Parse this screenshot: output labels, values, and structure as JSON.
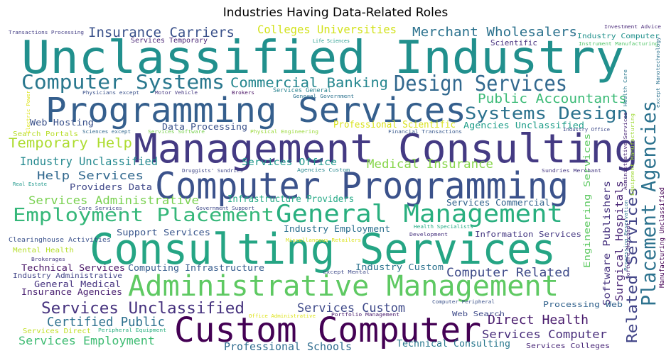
{
  "chart_data": {
    "type": "wordcloud",
    "title": "Industries Having Data-Related Roles",
    "words": [
      {
        "text": "Unclassified Industry",
        "color": "#21908d"
      },
      {
        "text": "Management Consulting",
        "color": "#443a83"
      },
      {
        "text": "Consulting Services",
        "color": "#25a584"
      },
      {
        "text": "Computer Programming",
        "color": "#3b528b"
      },
      {
        "text": "Programming Services",
        "color": "#355f8d"
      },
      {
        "text": "Custom Computer",
        "color": "#440154"
      },
      {
        "text": "Administrative Management",
        "color": "#5ec962"
      },
      {
        "text": "General Management",
        "color": "#29af7f"
      },
      {
        "text": "Placement Agencies",
        "color": "#2c728e"
      },
      {
        "text": "Employment Placement",
        "color": "#35b779"
      },
      {
        "text": "Design Services",
        "color": "#31688e"
      },
      {
        "text": "Computer Systems",
        "color": "#2a788e"
      },
      {
        "text": "Systems Design",
        "color": "#2c728e"
      },
      {
        "text": "Related Services",
        "color": "#414487"
      },
      {
        "text": "Services Unclassified",
        "color": "#46327e"
      },
      {
        "text": "Commercial Banking",
        "color": "#24868e"
      },
      {
        "text": "Insurance Carriers",
        "color": "#3b528b"
      },
      {
        "text": "Merchant Wholesalers",
        "color": "#2c728e"
      },
      {
        "text": "Public Accountants",
        "color": "#3aba76"
      },
      {
        "text": "Colleges Universities",
        "color": "#d2e21b"
      },
      {
        "text": "Temporary Help",
        "color": "#addc30"
      },
      {
        "text": "Medical Insurance",
        "color": "#86d549"
      },
      {
        "text": "Industry Unclassified",
        "color": "#23888e"
      },
      {
        "text": "Help Services",
        "color": "#31688e"
      },
      {
        "text": "Services Administrative",
        "color": "#7ad151"
      },
      {
        "text": "Services Custom",
        "color": "#3e4989"
      },
      {
        "text": "Certified Public",
        "color": "#2d708e"
      },
      {
        "text": "Direct Health",
        "color": "#481a6c"
      },
      {
        "text": "Computer Related",
        "color": "#3e4a89"
      },
      {
        "text": "Services Computer",
        "color": "#472c7a"
      },
      {
        "text": "Services Employment",
        "color": "#3fbc73"
      },
      {
        "text": "Professional Schools",
        "color": "#2f6c8e"
      },
      {
        "text": "Technical Consulting",
        "color": "#2a788e"
      },
      {
        "text": "Surgical Hospitals",
        "color": "#482475"
      },
      {
        "text": "Software Publishers",
        "color": "#46327e"
      },
      {
        "text": "Engineering Services",
        "color": "#5ec962"
      },
      {
        "text": "Professional Scientific",
        "color": "#d8e219"
      },
      {
        "text": "Data Processing",
        "color": "#3b528b"
      },
      {
        "text": "Services Office",
        "color": "#1f988b"
      },
      {
        "text": "Infrastructure Providers",
        "color": "#22a884"
      },
      {
        "text": "Agencies Unclassified",
        "color": "#1f9e89"
      },
      {
        "text": "Services Commercial",
        "color": "#33638d"
      },
      {
        "text": "Providers Data",
        "color": "#3f4788"
      },
      {
        "text": "Support Services",
        "color": "#39568c"
      },
      {
        "text": "Industry Employment",
        "color": "#2d708e"
      },
      {
        "text": "Information Services",
        "color": "#453882"
      },
      {
        "text": "Computing Infrastructure",
        "color": "#365c8d"
      },
      {
        "text": "Industry Custom",
        "color": "#2c728e"
      },
      {
        "text": "Technical Services",
        "color": "#471365"
      },
      {
        "text": "Industry Administrative",
        "color": "#414487"
      },
      {
        "text": "General Medical",
        "color": "#46337f"
      },
      {
        "text": "Insurance Agencies",
        "color": "#481f70"
      },
      {
        "text": "Processing Web",
        "color": "#33638d"
      },
      {
        "text": "Web Search",
        "color": "#3e4a89"
      },
      {
        "text": "Web Hosting",
        "color": "#3b528b"
      },
      {
        "text": "Services Direct",
        "color": "#c0df25"
      },
      {
        "text": "Mental Health",
        "color": "#b5de2b"
      },
      {
        "text": "Search Portals",
        "color": "#b8de29"
      },
      {
        "text": "Scientific",
        "color": "#46307e"
      },
      {
        "text": "Industry Computer",
        "color": "#21918c"
      },
      {
        "text": "Instrument Manufacturing",
        "color": "#52c569"
      },
      {
        "text": "Investment Advice",
        "color": "#482878"
      },
      {
        "text": "Transactions Processing",
        "color": "#433e85"
      },
      {
        "text": "Services Temporary",
        "color": "#482475"
      },
      {
        "text": "Life Sciences",
        "color": "#1f988b"
      },
      {
        "text": "Physicians except",
        "color": "#3b528b"
      },
      {
        "text": "Motor Vehicle",
        "color": "#453882"
      },
      {
        "text": "Brokers",
        "color": "#471063"
      },
      {
        "text": "Services General",
        "color": "#26828e"
      },
      {
        "text": "General Government",
        "color": "#2c728e"
      },
      {
        "text": "Electric Power",
        "color": "#dde318"
      },
      {
        "text": "Sciences except",
        "color": "#31688e"
      },
      {
        "text": "Services Software",
        "color": "#7ad151"
      },
      {
        "text": "Physical Engineering",
        "color": "#9bd93c"
      },
      {
        "text": "Financial Transactions",
        "color": "#38598c"
      },
      {
        "text": "Industry Office",
        "color": "#3e4a89"
      },
      {
        "text": "Health Care",
        "color": "#2a788e"
      },
      {
        "text": "except Nanotechnology",
        "color": "#2c728e"
      },
      {
        "text": "Administrative Services",
        "color": "#482475"
      },
      {
        "text": "Equipment Manufacturing",
        "color": "#a0da39"
      },
      {
        "text": "Druggists' Sundries",
        "color": "#3f4788"
      },
      {
        "text": "Agencies Custom",
        "color": "#24868e"
      },
      {
        "text": "Sundries Merchant",
        "color": "#453781"
      },
      {
        "text": "Real Estate",
        "color": "#1f988b"
      },
      {
        "text": "Care Services",
        "color": "#404688"
      },
      {
        "text": "Government Support",
        "color": "#3e4989"
      },
      {
        "text": "Clearinghouse Activities",
        "color": "#3b528b"
      },
      {
        "text": "Health Specialists",
        "color": "#24aa83"
      },
      {
        "text": "Miscellaneous Retailers",
        "color": "#dae319"
      },
      {
        "text": "Development",
        "color": "#46327e"
      },
      {
        "text": "Brokerages",
        "color": "#453882"
      },
      {
        "text": "Processing Reservation",
        "color": "#2c728e"
      },
      {
        "text": "Software Merchant",
        "color": "#482878"
      },
      {
        "text": "Manufacturing Unclassified",
        "color": "#440154"
      },
      {
        "text": "except Mental",
        "color": "#3e4a89"
      },
      {
        "text": "Office Administrative",
        "color": "#dde318"
      },
      {
        "text": "Portfolio Management",
        "color": "#481b6d"
      },
      {
        "text": "Computer Peripheral",
        "color": "#3b528b"
      },
      {
        "text": "Peripheral Equipment",
        "color": "#29af7f"
      },
      {
        "text": "Services Colleges",
        "color": "#482677"
      }
    ]
  }
}
